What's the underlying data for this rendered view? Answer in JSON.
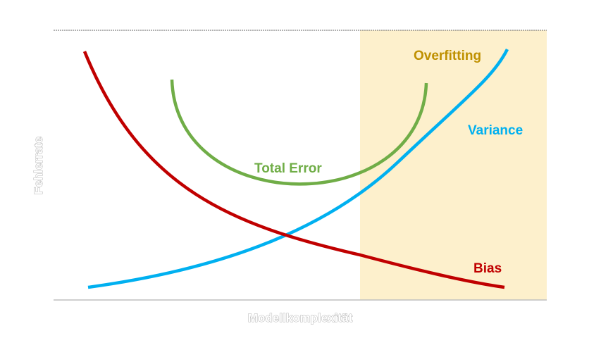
{
  "diagram": {
    "x_axis_label": "Modellkomplexität",
    "y_axis_label": "Fehlerrate",
    "overfitting_region": {
      "label": "Overfitting",
      "fill_color": "#fdf0cc",
      "label_color": "#bf9000"
    },
    "curves": {
      "total_error": {
        "label": "Total Error",
        "color": "#70ad47"
      },
      "variance": {
        "label": "Variance",
        "color": "#00b0f0"
      },
      "bias": {
        "label": "Bias",
        "color": "#c00000"
      }
    }
  }
}
